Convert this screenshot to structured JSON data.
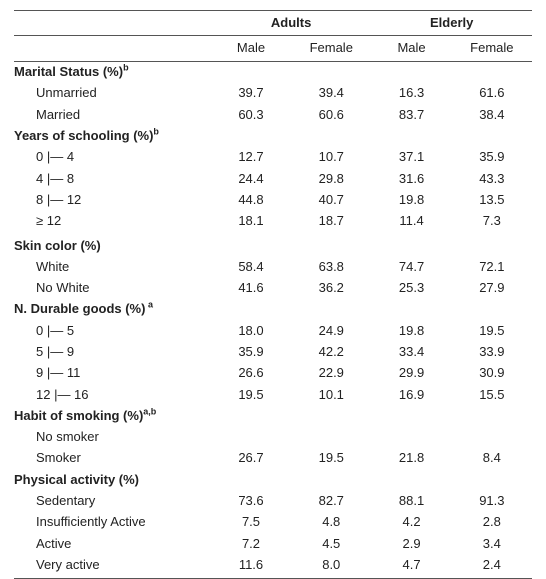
{
  "header": {
    "groups": [
      "Adults",
      "Elderly"
    ],
    "sub": [
      "Male",
      "Female",
      "Male",
      "Female"
    ]
  },
  "sections": [
    {
      "title": "Marital Status (%)",
      "sup": "b",
      "rows": [
        {
          "label": "Unmarried",
          "vals": [
            "39.7",
            "39.4",
            "16.3",
            "61.6"
          ]
        },
        {
          "label": "Married",
          "vals": [
            "60.3",
            "60.6",
            "83.7",
            "38.4"
          ]
        }
      ]
    },
    {
      "title": "Years of schooling (%)",
      "sup": "b",
      "rows": [
        {
          "label": "0 |— 4",
          "vals": [
            "12.7",
            "10.7",
            "37.1",
            "35.9"
          ]
        },
        {
          "label": "4 |— 8",
          "vals": [
            "24.4",
            "29.8",
            "31.6",
            "43.3"
          ]
        },
        {
          "label": "8 |— 12",
          "vals": [
            "44.8",
            "40.7",
            "19.8",
            "13.5"
          ]
        },
        {
          "label": "≥ 12",
          "vals": [
            "18.1",
            "18.7",
            "11.4",
            "7.3"
          ]
        }
      ]
    },
    {
      "title": "Skin color (%)",
      "sup": "",
      "gap": true,
      "rows": [
        {
          "label": "White",
          "vals": [
            "58.4",
            "63.8",
            "74.7",
            "72.1"
          ]
        },
        {
          "label": "No White",
          "vals": [
            "41.6",
            "36.2",
            "25.3",
            "27.9"
          ]
        }
      ]
    },
    {
      "title": "N. Durable goods (%)",
      "sup": " a",
      "rows": [
        {
          "label": "0 |— 5",
          "vals": [
            "18.0",
            "24.9",
            "19.8",
            "19.5"
          ]
        },
        {
          "label": "5 |— 9",
          "vals": [
            "35.9",
            "42.2",
            "33.4",
            "33.9"
          ]
        },
        {
          "label": "9 |— 11",
          "vals": [
            "26.6",
            "22.9",
            "29.9",
            "30.9"
          ]
        },
        {
          "label": "12 |— 16",
          "vals": [
            "19.5",
            "10.1",
            "16.9",
            "15.5"
          ]
        }
      ]
    },
    {
      "title": "Habit of smoking (%)",
      "sup": "a,b",
      "rows": [
        {
          "label": "No smoker",
          "vals": [
            "",
            "",
            "",
            ""
          ]
        },
        {
          "label": "Smoker",
          "vals": [
            "26.7",
            "19.5",
            "21.8",
            "8.4"
          ]
        }
      ]
    },
    {
      "title": "Physical activity (%)",
      "sup": "",
      "rows": [
        {
          "label": "Sedentary",
          "vals": [
            "73.6",
            "82.7",
            "88.1",
            "91.3"
          ]
        },
        {
          "label": "Insufficiently Active",
          "vals": [
            "7.5",
            "4.8",
            "4.2",
            "2.8"
          ]
        },
        {
          "label": "Active",
          "vals": [
            "7.2",
            "4.5",
            "2.9",
            "3.4"
          ]
        },
        {
          "label": "Very active",
          "vals": [
            "11.6",
            "8.0",
            "4.7",
            "2.4"
          ]
        }
      ]
    }
  ]
}
